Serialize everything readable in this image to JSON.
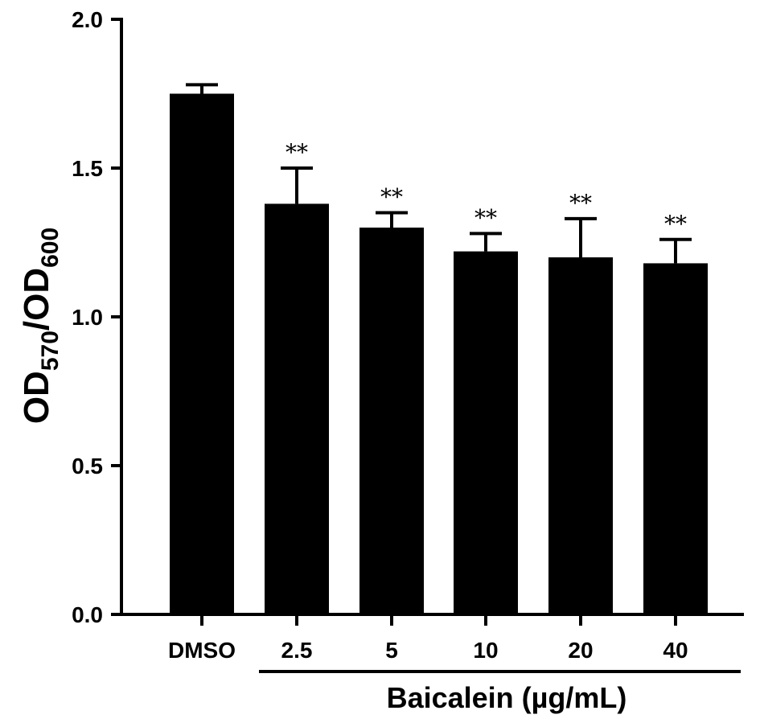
{
  "chart_data": {
    "type": "bar",
    "title": "",
    "xlabel": "Baicalein (µg/mL)",
    "ylabel": "OD570/OD600",
    "ylabel_parts": {
      "main1": "OD",
      "sub1": "570",
      "slash": "/",
      "main2": "OD",
      "sub2": "600"
    },
    "categories": [
      "DMSO",
      "2.5",
      "5",
      "10",
      "20",
      "40"
    ],
    "values": [
      1.75,
      1.38,
      1.3,
      1.22,
      1.2,
      1.18
    ],
    "error_upper": [
      0.03,
      0.12,
      0.05,
      0.06,
      0.13,
      0.08
    ],
    "significance": [
      "",
      "**",
      "**",
      "**",
      "**",
      "**"
    ],
    "ylim": [
      0.0,
      2.0
    ],
    "yticks": [
      "0.0",
      "0.5",
      "1.0",
      "1.5",
      "2.0"
    ],
    "grid": false,
    "legend": null,
    "group_bracket": {
      "label": "Baicalein (µg/mL)",
      "spans": [
        "2.5",
        "5",
        "10",
        "20",
        "40"
      ]
    },
    "bar_color": "#000000"
  }
}
